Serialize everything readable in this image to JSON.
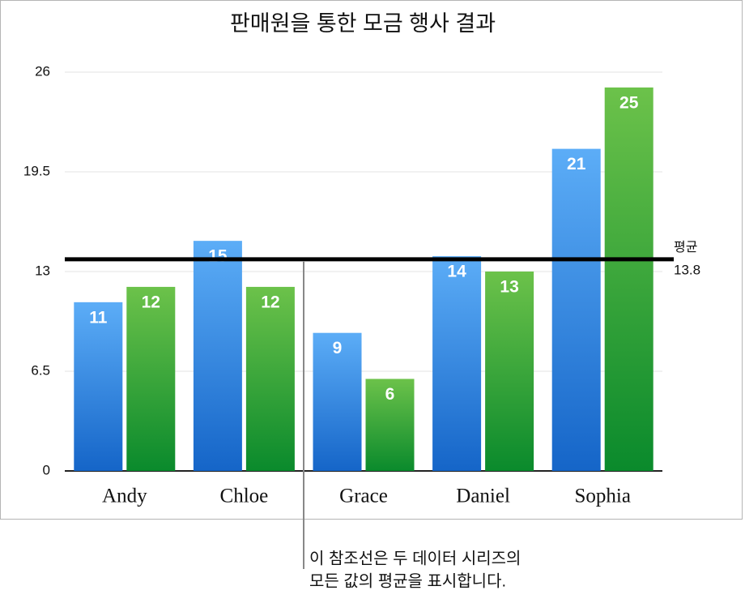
{
  "chart_data": {
    "type": "bar",
    "title": "판매원을 통한 모금 행사 결과",
    "categories": [
      "Andy",
      "Chloe",
      "Grace",
      "Daniel",
      "Sophia"
    ],
    "series": [
      {
        "color": [
          "#5cadf7",
          "#1565c8"
        ],
        "values": [
          11,
          15,
          9,
          14,
          21
        ]
      },
      {
        "color": [
          "#6cc24a",
          "#0a8a2c"
        ],
        "values": [
          12,
          12,
          6,
          13,
          25
        ]
      }
    ],
    "ylim": [
      0,
      26
    ],
    "yticks": [
      0,
      6.5,
      13,
      19.5,
      26
    ],
    "grid": true,
    "reference_line": {
      "label": "평균",
      "value": 13.8
    },
    "annotation": [
      "이 참조선은 두 데이터 시리즈의",
      "모든 값의 평균을 표시합니다."
    ]
  }
}
